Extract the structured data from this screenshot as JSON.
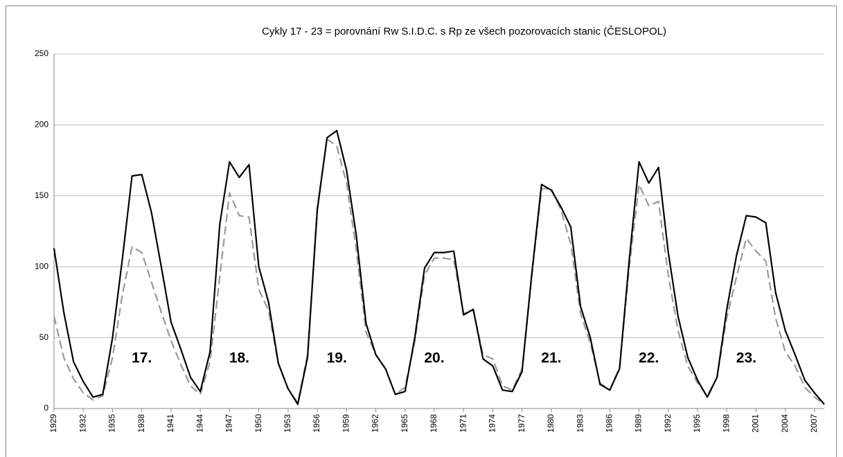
{
  "chart_data": {
    "type": "line",
    "title": "Cykly 17 - 23 = porovnání Rw  S.I.D.C.  s Rp ze všech pozorovacích stanic (ČESLOPOL)",
    "categories": [
      "1929",
      null,
      null,
      "1932",
      null,
      null,
      "1935",
      null,
      null,
      "1938",
      null,
      null,
      "1941",
      null,
      null,
      "1944",
      null,
      null,
      "1947",
      null,
      null,
      "1950",
      null,
      null,
      "1953",
      null,
      null,
      "1956",
      null,
      null,
      "1959",
      null,
      null,
      "1962",
      null,
      null,
      "1965",
      null,
      null,
      "1968",
      null,
      null,
      "1971",
      null,
      null,
      "1974",
      null,
      null,
      "1977",
      null,
      null,
      "1980",
      null,
      null,
      "1983",
      null,
      null,
      "1986",
      null,
      null,
      "1989",
      null,
      null,
      "1992",
      null,
      null,
      "1995",
      null,
      null,
      "1998",
      null,
      null,
      "2001",
      null,
      null,
      "2004",
      null,
      null,
      "2007",
      null
    ],
    "series": [
      {
        "color": "#000000",
        "dash": false,
        "values": [
          113,
          68,
          33,
          19,
          8,
          10,
          50,
          105,
          164,
          165,
          138,
          100,
          61,
          42,
          22,
          12,
          40,
          130,
          174,
          163,
          172,
          100,
          75,
          32,
          14,
          3,
          36,
          140,
          191,
          196,
          168,
          122,
          60,
          38,
          28,
          10,
          12,
          50,
          99,
          110,
          110,
          111,
          66,
          70,
          35,
          30,
          13,
          12,
          26,
          95,
          158,
          154,
          142,
          128,
          72,
          50,
          17,
          13,
          28,
          105,
          174,
          159,
          170,
          110,
          65,
          36,
          20,
          8,
          22,
          70,
          108,
          136,
          135,
          131,
          82,
          55,
          38,
          20,
          11,
          3
        ]
      },
      {
        "color": "#999999",
        "dash": true,
        "values": [
          65,
          36,
          21,
          11,
          6,
          9,
          36,
          80,
          114,
          110,
          89,
          68,
          48,
          31,
          16,
          10,
          33,
          93,
          152,
          136,
          135,
          84,
          69,
          32,
          14,
          4,
          38,
          142,
          190,
          185,
          159,
          112,
          54,
          38,
          28,
          10,
          15,
          47,
          94,
          106,
          106,
          105,
          67,
          69,
          38,
          35,
          16,
          13,
          28,
          93,
          155,
          155,
          140,
          116,
          67,
          46,
          18,
          13,
          29,
          100,
          158,
          143,
          146,
          94,
          55,
          30,
          18,
          9,
          22,
          64,
          93,
          120,
          111,
          104,
          64,
          40,
          30,
          15,
          8,
          3
        ]
      }
    ],
    "annotations": [
      "17.",
      "18.",
      "19.",
      "20.",
      "21.",
      "22.",
      "23."
    ],
    "ylim": [
      0,
      250
    ],
    "yticks": [
      0,
      50,
      100,
      150,
      200,
      250
    ],
    "grid": true
  }
}
